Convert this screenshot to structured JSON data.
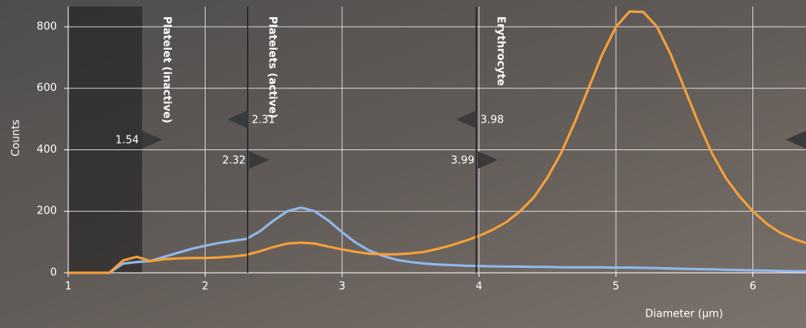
{
  "chart_data": {
    "type": "line",
    "x": [
      1,
      1.1,
      1.2,
      1.3,
      1.4,
      1.5,
      1.6,
      1.7,
      1.8,
      1.9,
      2,
      2.1,
      2.2,
      2.3,
      2.4,
      2.5,
      2.6,
      2.7,
      2.8,
      2.9,
      3,
      3.1,
      3.2,
      3.3,
      3.4,
      3.5,
      3.6,
      3.7,
      3.8,
      3.9,
      4,
      4.1,
      4.2,
      4.3,
      4.4,
      4.5,
      4.6,
      4.7,
      4.8,
      4.9,
      5,
      5.1,
      5.2,
      5.3,
      5.4,
      5.5,
      5.6,
      5.7,
      5.8,
      5.9,
      6,
      6.1,
      6.2,
      6.3,
      6.4
    ],
    "series": [
      {
        "color": "#8fb8ea",
        "values": [
          0,
          0,
          0,
          0,
          30,
          35,
          38,
          52,
          65,
          78,
          88,
          97,
          104,
          110,
          135,
          170,
          200,
          212,
          200,
          170,
          132,
          98,
          72,
          55,
          42,
          35,
          30,
          27,
          25,
          23,
          22,
          21,
          20,
          20,
          19,
          19,
          18,
          18,
          18,
          18,
          17,
          17,
          16,
          15,
          14,
          13,
          12,
          11,
          10,
          9,
          8,
          7,
          6,
          5,
          5
        ]
      },
      {
        "color": "#f5a03a",
        "values": [
          0,
          0,
          0,
          0,
          40,
          52,
          38,
          44,
          47,
          48,
          48,
          50,
          53,
          58,
          70,
          84,
          95,
          98,
          95,
          85,
          76,
          68,
          62,
          60,
          60,
          63,
          68,
          78,
          90,
          104,
          120,
          140,
          165,
          200,
          245,
          310,
          390,
          490,
          600,
          710,
          800,
          850,
          848,
          800,
          710,
          600,
          490,
          390,
          310,
          250,
          200,
          160,
          130,
          110,
          95
        ]
      }
    ],
    "xlim": [
      1,
      6.4
    ],
    "ylim": [
      0,
      866
    ],
    "xticks": [
      1,
      2,
      3,
      4,
      5,
      6
    ],
    "yticks": [
      0,
      200,
      400,
      600,
      800
    ],
    "grid": true,
    "x_label": "Diameter (µm)",
    "y_label": "Counts",
    "markers": [
      {
        "value": 1.54,
        "direction": "right"
      },
      {
        "value": 2.31,
        "direction": "left"
      },
      {
        "value": 2.32,
        "direction": "right"
      },
      {
        "value": 3.98,
        "direction": "left"
      },
      {
        "value": 3.99,
        "direction": "right"
      }
    ],
    "regions": [
      "Platelet (inactive)",
      "Platelets (active)",
      "Erythrocyte"
    ]
  }
}
